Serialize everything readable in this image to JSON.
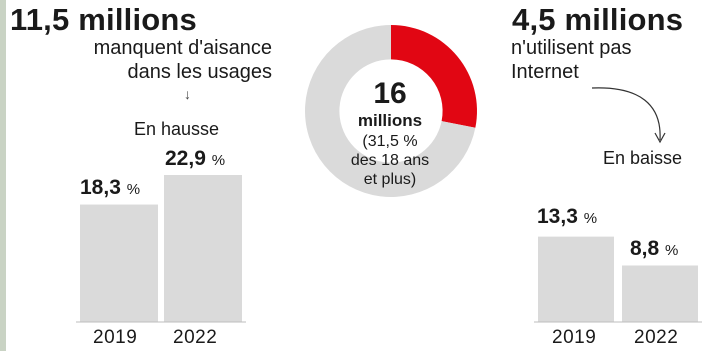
{
  "colors": {
    "accent": "#e10613",
    "grey": "#dadada",
    "text": "#1a1a1a"
  },
  "left_panel": {
    "headline": "11,5 millions",
    "desc_line1": "manquent d'aisance",
    "desc_line2": "dans les usages",
    "arrow_glyph": "↓",
    "trend_label": "En hausse"
  },
  "right_panel": {
    "headline": "4,5 millions",
    "desc_line1": "n'utilisent pas",
    "desc_line2": "Internet",
    "trend_label": "En baisse"
  },
  "center_donut": {
    "value": "16",
    "unit": "millions",
    "note_line1": "(31,5 %",
    "note_line2": "des 18 ans",
    "note_line3": "et plus)"
  },
  "chart_data": [
    {
      "type": "bar",
      "categories": [
        "2019",
        "2022"
      ],
      "values": [
        18.3,
        22.9
      ],
      "value_labels": [
        "18,3",
        "22,9"
      ],
      "unit": "%",
      "ylim": [
        0,
        22.9
      ]
    },
    {
      "type": "pie",
      "labels": [
        "11,5 millions",
        "4,5 millions"
      ],
      "values": [
        11.5,
        4.5
      ],
      "colors": [
        "#dadada",
        "#e10613"
      ],
      "hole": 0.6
    },
    {
      "type": "bar",
      "categories": [
        "2019",
        "2022"
      ],
      "values": [
        13.3,
        8.8
      ],
      "value_labels": [
        "13,3",
        "8,8"
      ],
      "unit": "%",
      "ylim": [
        0,
        22.9
      ]
    }
  ]
}
